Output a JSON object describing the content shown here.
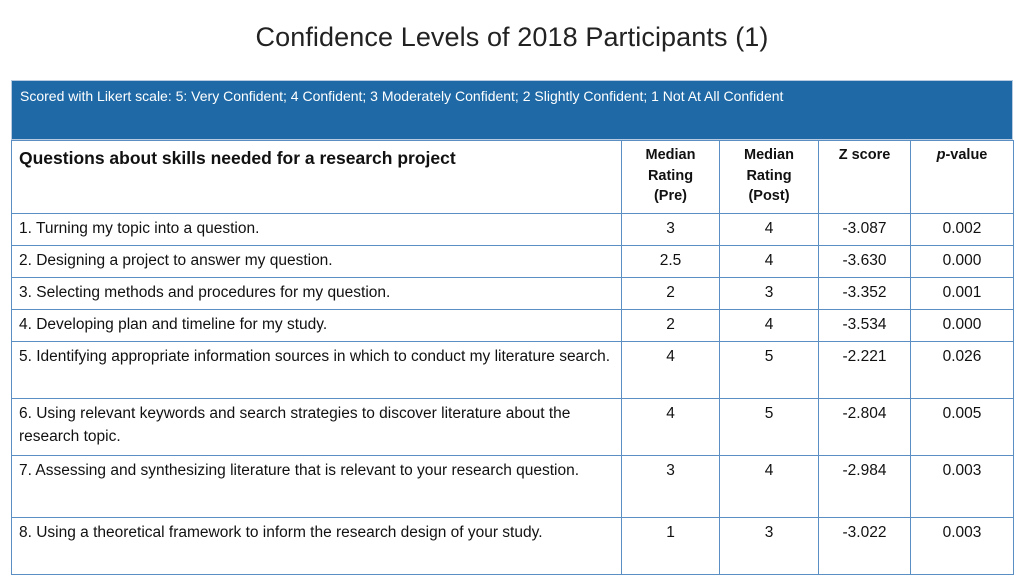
{
  "title": "Confidence Levels of 2018 Participants (1)",
  "scale_note": "Scored with Likert scale: 5: Very Confident; 4 Confident; 3 Moderately Confident; 2 Slightly Confident; 1 Not At All Confident",
  "headers": {
    "question": "Questions about skills needed for a research project",
    "median_pre_lines": [
      "Median",
      "Rating",
      "(Pre)"
    ],
    "median_post_lines": [
      "Median",
      "Rating",
      "(Post)"
    ],
    "z_score": "Z score",
    "p_value_italic": "p",
    "p_value_rest": "-value"
  },
  "rows": [
    {
      "question": "1. Turning my topic into a question.",
      "pre": "3",
      "post": "4",
      "z": "-3.087",
      "p": "0.002"
    },
    {
      "question": "2. Designing a project to answer my question.",
      "pre": "2.5",
      "post": "4",
      "z": "-3.630",
      "p": "0.000"
    },
    {
      "question": "3. Selecting methods and procedures for my question.",
      "pre": "2",
      "post": "3",
      "z": "-3.352",
      "p": "0.001"
    },
    {
      "question": "4. Developing plan and timeline for my study.",
      "pre": "2",
      "post": "4",
      "z": "-3.534",
      "p": "0.000"
    },
    {
      "question": "5. Identifying appropriate information sources in which to conduct my literature search.",
      "pre": "4",
      "post": "5",
      "z": "-2.221",
      "p": "0.026"
    },
    {
      "question": "6. Using relevant keywords and search strategies to discover literature about the research topic.",
      "pre": "4",
      "post": "5",
      "z": "-2.804",
      "p": "0.005"
    },
    {
      "question": "7. Assessing and synthesizing literature that is relevant to your research question.",
      "pre": "3",
      "post": "4",
      "z": "-2.984",
      "p": "0.003"
    },
    {
      "question": "8. Using a theoretical framework to inform the research design of your study.",
      "pre": "1",
      "post": "3",
      "z": "-3.022",
      "p": "0.003"
    }
  ]
}
